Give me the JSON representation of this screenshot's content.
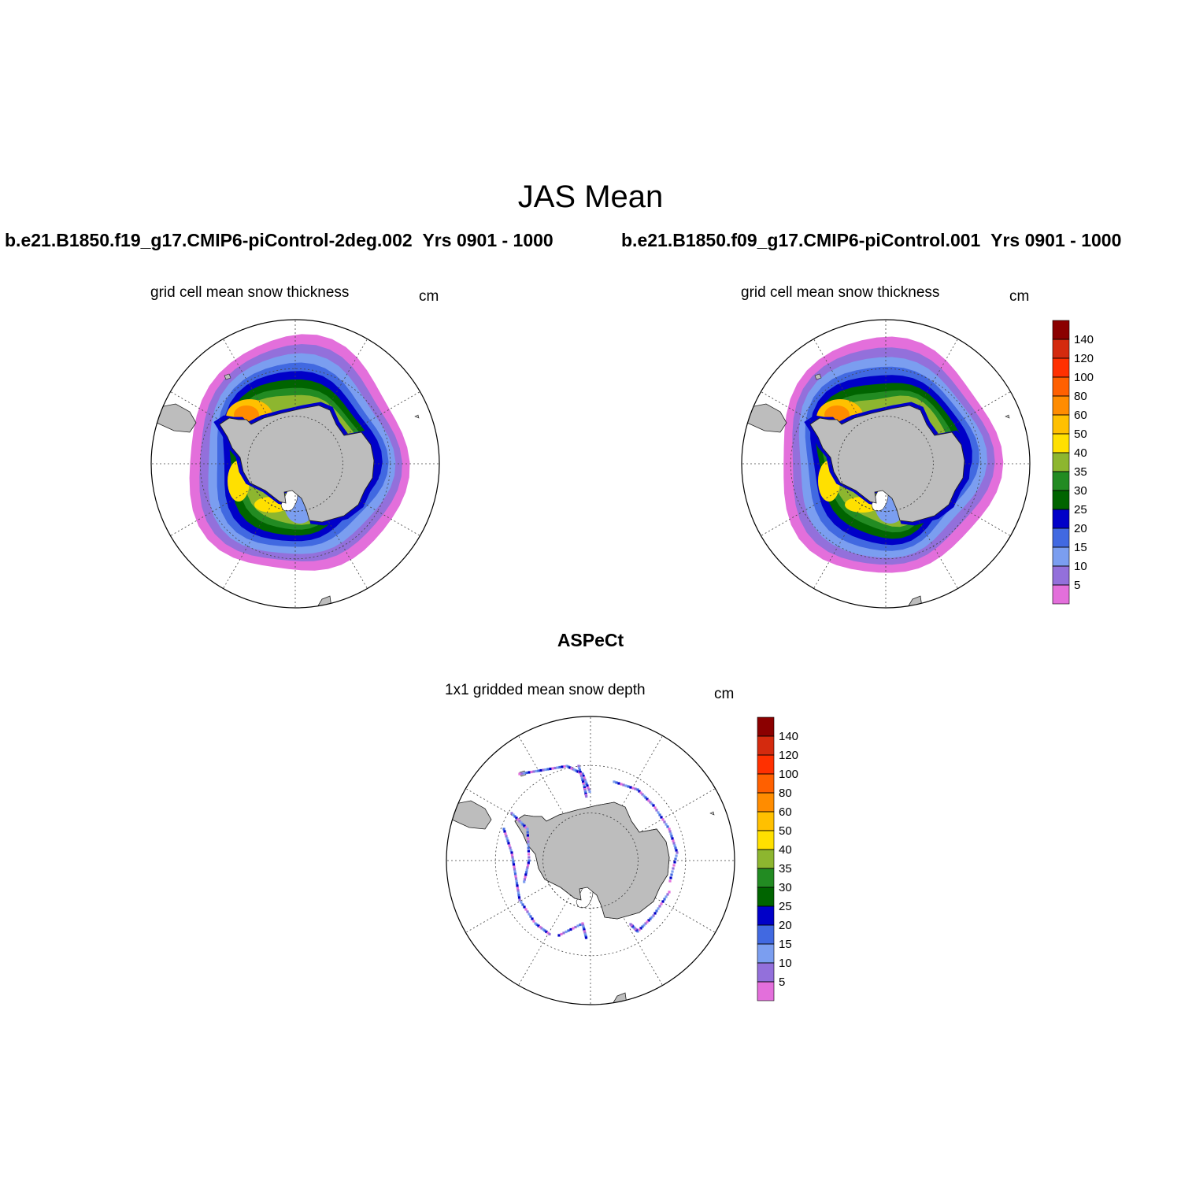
{
  "title": "JAS Mean",
  "cases": [
    {
      "name": "b.e21.B1850.f19_g17.CMIP6-piControl-2deg.002",
      "years": "Yrs 0901 - 1000"
    },
    {
      "name": "b.e21.B1850.f09_g17.CMIP6-piControl.001",
      "years": "Yrs 0901 - 1000"
    }
  ],
  "panels": [
    {
      "title": "grid cell mean snow thickness",
      "units": "cm"
    },
    {
      "title": "grid cell mean snow thickness",
      "units": "cm"
    }
  ],
  "observation": {
    "name": "ASPeCt",
    "title": "1x1 gridded mean snow depth",
    "units": "cm"
  },
  "colorbar": {
    "levels": [
      "5",
      "10",
      "15",
      "20",
      "25",
      "30",
      "35",
      "40",
      "50",
      "60",
      "80",
      "100",
      "120",
      "140"
    ],
    "colors": [
      "#e36fdb",
      "#9370db",
      "#7b9ef0",
      "#4169e1",
      "#0000c8",
      "#006400",
      "#228b22",
      "#8db62f",
      "#ffe000",
      "#ffc000",
      "#ff8c00",
      "#ff6000",
      "#ff3000",
      "#d42a0e",
      "#8b0000"
    ]
  },
  "map_colors": {
    "land": "#bdbdbd",
    "ocean": "#ffffff"
  }
}
